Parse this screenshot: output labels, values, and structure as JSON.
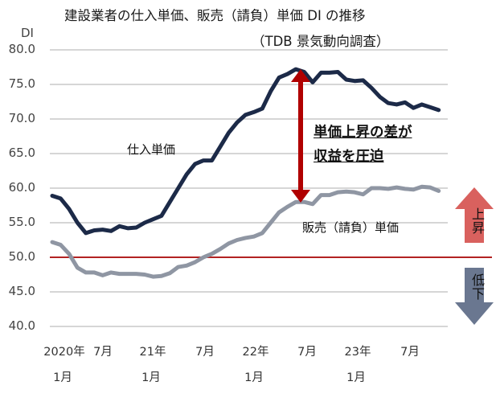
{
  "chart_data": {
    "type": "line",
    "title": "建設業者の仕入単価、販売（請負）単価 DI の推移",
    "subtitle": "（TDB 景気動向調査）",
    "ylabel": "DI",
    "xlabel": "",
    "ylim": [
      40,
      80
    ],
    "yticks": [
      "80.0",
      "75.0",
      "70.0",
      "65.0",
      "60.0",
      "55.0",
      "50.0",
      "45.0",
      "40.0"
    ],
    "grid": true,
    "legend_position": "inline labels",
    "x_tick_labels": [
      {
        "line1": "2020年",
        "line2": "1月"
      },
      {
        "line1": "7月",
        "line2": ""
      },
      {
        "line1": "21年",
        "line2": "1月"
      },
      {
        "line1": "7月",
        "line2": ""
      },
      {
        "line1": "22年",
        "line2": "1月"
      },
      {
        "line1": "7月",
        "line2": ""
      },
      {
        "line1": "23年",
        "line2": "1月"
      },
      {
        "line1": "7月",
        "line2": ""
      }
    ],
    "x": [
      "2020-01",
      "2020-02",
      "2020-03",
      "2020-04",
      "2020-05",
      "2020-06",
      "2020-07",
      "2020-08",
      "2020-09",
      "2020-10",
      "2020-11",
      "2020-12",
      "2021-01",
      "2021-02",
      "2021-03",
      "2021-04",
      "2021-05",
      "2021-06",
      "2021-07",
      "2021-08",
      "2021-09",
      "2021-10",
      "2021-11",
      "2021-12",
      "2022-01",
      "2022-02",
      "2022-03",
      "2022-04",
      "2022-05",
      "2022-06",
      "2022-07",
      "2022-08",
      "2022-09",
      "2022-10",
      "2022-11",
      "2022-12",
      "2023-01",
      "2023-02",
      "2023-03",
      "2023-04",
      "2023-05",
      "2023-06",
      "2023-07",
      "2023-08",
      "2023-09",
      "2023-10",
      "2023-11"
    ],
    "series": [
      {
        "name": "仕入単価",
        "color": "#1c2a48",
        "values": [
          58.9,
          58.5,
          57.0,
          55.0,
          53.5,
          53.9,
          54.0,
          53.8,
          54.5,
          54.2,
          54.3,
          55.0,
          55.5,
          56.0,
          58.0,
          60.0,
          62.0,
          63.5,
          64.0,
          64.0,
          66.0,
          68.0,
          69.5,
          70.6,
          71.0,
          71.5,
          74.0,
          76.0,
          76.5,
          77.2,
          76.8,
          75.3,
          76.7,
          76.7,
          76.8,
          75.7,
          75.5,
          75.6,
          74.5,
          73.2,
          72.3,
          72.1,
          72.4,
          71.6,
          72.1,
          71.7,
          71.3
        ]
      },
      {
        "name": "販売（請負）単価",
        "color": "#8f96a3",
        "values": [
          52.2,
          51.8,
          50.5,
          48.5,
          47.8,
          47.8,
          47.4,
          47.8,
          47.6,
          47.6,
          47.6,
          47.5,
          47.2,
          47.3,
          47.7,
          48.6,
          48.8,
          49.3,
          50.0,
          50.5,
          51.2,
          52.0,
          52.5,
          52.8,
          53.0,
          53.5,
          55.0,
          56.5,
          57.3,
          58.0,
          58.0,
          57.7,
          59.0,
          59.0,
          59.4,
          59.5,
          59.4,
          59.1,
          60.0,
          60.0,
          59.9,
          60.1,
          59.9,
          59.8,
          60.2,
          60.1,
          59.6
        ]
      }
    ],
    "reference_line": {
      "value": 50,
      "color": "#b22222"
    },
    "annotations": {
      "series1_label": "仕入単価",
      "series2_label": "販売（請負）単価",
      "gap_text_line1": "単価上昇の差が",
      "gap_text_line2": "収益を圧迫",
      "up_label": "上昇",
      "down_label": "低下"
    }
  }
}
